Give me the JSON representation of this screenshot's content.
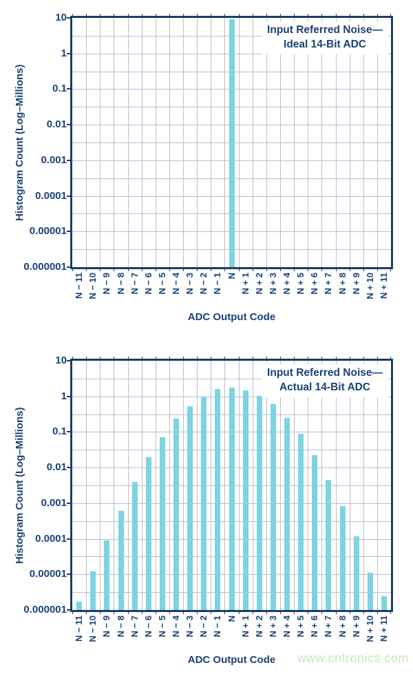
{
  "colors": {
    "text": "#1a4178",
    "border": "#1c3d68",
    "grid": "#b9bcd2",
    "bar": "#7ed3e2",
    "wm": "#c3e9ba",
    "bg": "#ffffff"
  },
  "watermark": {
    "text": "www.cntronics.com"
  },
  "chart_data": [
    {
      "type": "bar",
      "title": [
        "Input Referred Noise—",
        "Ideal 14-Bit ADC"
      ],
      "xlabel": "ADC Output Code",
      "ylabel": "Histogram Count (Log–Millions)",
      "yscale": "log",
      "ylim": [
        1e-06,
        10
      ],
      "yticks": [
        "10",
        "1",
        "0.1",
        "0.01",
        "0.001",
        "0.0001",
        "0.00001",
        "0.000001"
      ],
      "grid": "on",
      "legend": "none",
      "categories": [
        "N − 11",
        "N − 10",
        "N − 9",
        "N − 8",
        "N − 7",
        "N − 6",
        "N − 5",
        "N − 4",
        "N − 3",
        "N − 2",
        "N − 1",
        "N",
        "N + 1",
        "N + 2",
        "N + 3",
        "N + 4",
        "N + 5",
        "N + 6",
        "N + 7",
        "N + 8",
        "N + 9",
        "N + 10",
        "N + 11"
      ],
      "values": [
        0,
        0,
        0,
        0,
        0,
        0,
        0,
        0,
        0,
        0,
        0,
        9,
        0,
        0,
        0,
        0,
        0,
        0,
        0,
        0,
        0,
        0,
        0
      ]
    },
    {
      "type": "bar",
      "title": [
        "Input Referred Noise—",
        "Actual 14-Bit ADC"
      ],
      "xlabel": "ADC Output Code",
      "ylabel": "Histogram Count (Log–Millions)",
      "yscale": "log",
      "ylim": [
        1e-06,
        10
      ],
      "yticks": [
        "10",
        "1",
        "0.1",
        "0.01",
        "0.001",
        "0.0001",
        "0.00001",
        "0.000001"
      ],
      "grid": "on",
      "legend": "none",
      "categories": [
        "N − 11",
        "N − 10",
        "N − 9",
        "N − 8",
        "N − 7",
        "N − 6",
        "N − 5",
        "N − 4",
        "N − 3",
        "N − 2",
        "N − 1",
        "N",
        "N + 1",
        "N + 2",
        "N + 3",
        "N + 4",
        "N + 5",
        "N + 6",
        "N + 7",
        "N + 8",
        "N + 9",
        "N + 10",
        "N + 11"
      ],
      "values": [
        1.7e-06,
        1.2e-05,
        9e-05,
        0.0006,
        0.004,
        0.02,
        0.07,
        0.24,
        0.52,
        1.0,
        1.6,
        1.8,
        1.5,
        1.05,
        0.6,
        0.25,
        0.09,
        0.022,
        0.0045,
        0.00085,
        0.000115,
        1.1e-05,
        2.4e-06
      ]
    }
  ]
}
